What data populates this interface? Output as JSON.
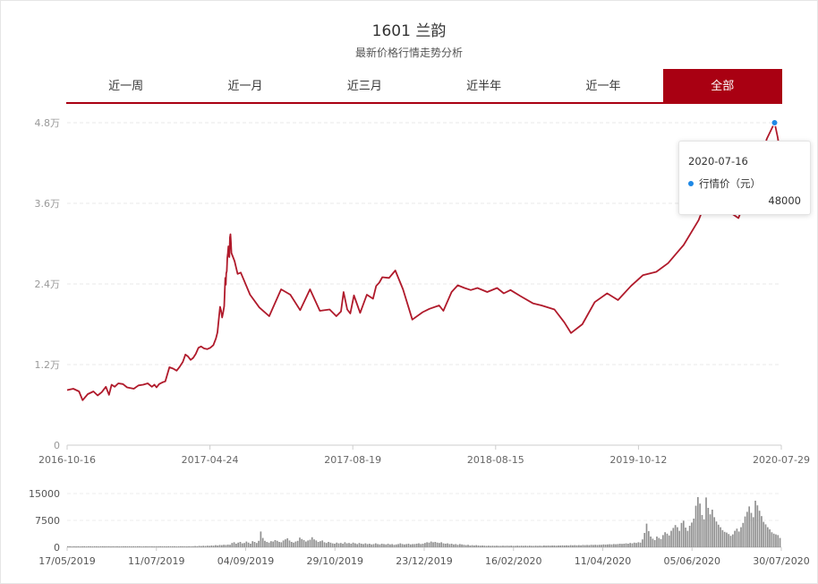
{
  "header": {
    "title": "1601 兰韵",
    "subtitle": "最新价格行情走势分析"
  },
  "tabs": [
    {
      "label": "近一周",
      "active": false
    },
    {
      "label": "近一月",
      "active": false
    },
    {
      "label": "近三月",
      "active": false
    },
    {
      "label": "近半年",
      "active": false
    },
    {
      "label": "近一年",
      "active": false
    },
    {
      "label": "全部",
      "active": true
    }
  ],
  "colors": {
    "line": "#b01a2b",
    "accent": "#a90012",
    "marker": "#1e88e5",
    "volume": "#909090"
  },
  "tooltip": {
    "date": "2020-07-16",
    "series_name": "行情价（元）",
    "value": "48000"
  },
  "chart_data": [
    {
      "type": "line",
      "series": [
        {
          "name": "行情价（元）"
        }
      ],
      "ylim": [
        0,
        48000
      ],
      "y_ticks": [
        "0",
        "1.2万",
        "2.4万",
        "3.6万",
        "4.8万"
      ],
      "x_ticks": [
        "2016-10-16",
        "2017-04-24",
        "2017-08-19",
        "2018-08-15",
        "2019-10-12",
        "2020-07-29"
      ],
      "grid": true,
      "points": [
        [
          "2016-10-16",
          8200
        ],
        [
          "2016-10-28",
          8400
        ],
        [
          "2016-11-08",
          8000
        ],
        [
          "2016-11-15",
          6700
        ],
        [
          "2016-11-25",
          7600
        ],
        [
          "2016-12-06",
          8000
        ],
        [
          "2016-12-14",
          7400
        ],
        [
          "2016-12-22",
          7900
        ],
        [
          "2016-12-30",
          8700
        ],
        [
          "2017-01-05",
          7500
        ],
        [
          "2017-01-10",
          9000
        ],
        [
          "2017-01-16",
          8700
        ],
        [
          "2017-01-23",
          9200
        ],
        [
          "2017-02-01",
          9100
        ],
        [
          "2017-02-09",
          8600
        ],
        [
          "2017-02-22",
          8400
        ],
        [
          "2017-03-03",
          8900
        ],
        [
          "2017-03-12",
          9000
        ],
        [
          "2017-03-21",
          9200
        ],
        [
          "2017-03-29",
          8700
        ],
        [
          "2017-04-03",
          9000
        ],
        [
          "2017-04-07",
          8600
        ],
        [
          "2017-04-12",
          9100
        ],
        [
          "2017-04-17",
          9300
        ],
        [
          "2017-04-20",
          9400
        ],
        [
          "2017-04-24",
          9500
        ],
        [
          "2017-05-02",
          11600
        ],
        [
          "2017-05-09",
          11400
        ],
        [
          "2017-05-16",
          11100
        ],
        [
          "2017-05-22",
          11700
        ],
        [
          "2017-05-28",
          12400
        ],
        [
          "2017-06-02",
          13500
        ],
        [
          "2017-06-07",
          13200
        ],
        [
          "2017-06-12",
          12700
        ],
        [
          "2017-06-17",
          13000
        ],
        [
          "2017-06-22",
          13600
        ],
        [
          "2017-06-27",
          14500
        ],
        [
          "2017-07-02",
          14700
        ],
        [
          "2017-07-08",
          14400
        ],
        [
          "2017-07-14",
          14300
        ],
        [
          "2017-07-20",
          14500
        ],
        [
          "2017-07-26",
          14900
        ],
        [
          "2017-07-31",
          15900
        ],
        [
          "2017-08-03",
          16800
        ],
        [
          "2017-08-06",
          19200
        ],
        [
          "2017-08-08",
          20600
        ],
        [
          "2017-08-10",
          20000
        ],
        [
          "2017-08-12",
          19000
        ],
        [
          "2017-08-14",
          19800
        ],
        [
          "2017-08-16",
          20700
        ],
        [
          "2017-08-18",
          24900
        ],
        [
          "2017-08-19",
          23900
        ],
        [
          "2017-08-20",
          25600
        ],
        [
          "2017-08-21",
          25900
        ],
        [
          "2017-08-22",
          27900
        ],
        [
          "2017-08-23",
          28600
        ],
        [
          "2017-08-24",
          29600
        ],
        [
          "2017-08-25",
          28200
        ],
        [
          "2017-08-26",
          28000
        ],
        [
          "2017-08-27",
          30900
        ],
        [
          "2017-08-28",
          31400
        ],
        [
          "2017-08-29",
          30300
        ],
        [
          "2017-08-30",
          28600
        ],
        [
          "2017-08-31",
          28400
        ],
        [
          "2017-09-05",
          27400
        ],
        [
          "2017-09-11",
          25500
        ],
        [
          "2017-09-17",
          25700
        ],
        [
          "2017-10-05",
          22400
        ],
        [
          "2017-10-23",
          20500
        ],
        [
          "2017-11-11",
          19200
        ],
        [
          "2017-12-04",
          23200
        ],
        [
          "2017-12-22",
          22400
        ],
        [
          "2018-01-10",
          20100
        ],
        [
          "2018-01-29",
          23200
        ],
        [
          "2018-02-17",
          20000
        ],
        [
          "2018-03-08",
          20200
        ],
        [
          "2018-03-21",
          19200
        ],
        [
          "2018-03-30",
          19900
        ],
        [
          "2018-04-04",
          22800
        ],
        [
          "2018-04-11",
          20200
        ],
        [
          "2018-04-17",
          19600
        ],
        [
          "2018-04-24",
          22300
        ],
        [
          "2018-05-06",
          19700
        ],
        [
          "2018-05-19",
          22400
        ],
        [
          "2018-05-31",
          21800
        ],
        [
          "2018-06-06",
          23700
        ],
        [
          "2018-06-12",
          24200
        ],
        [
          "2018-06-18",
          25000
        ],
        [
          "2018-07-01",
          24900
        ],
        [
          "2018-07-13",
          26000
        ],
        [
          "2018-07-28",
          23200
        ],
        [
          "2018-08-15",
          18700
        ],
        [
          "2018-09-04",
          19800
        ],
        [
          "2018-09-17",
          20300
        ],
        [
          "2018-10-06",
          20800
        ],
        [
          "2018-10-14",
          20000
        ],
        [
          "2018-10-30",
          22800
        ],
        [
          "2018-11-11",
          23800
        ],
        [
          "2018-11-24",
          23400
        ],
        [
          "2018-12-06",
          23100
        ],
        [
          "2018-12-19",
          23400
        ],
        [
          "2019-01-07",
          22800
        ],
        [
          "2019-01-26",
          23400
        ],
        [
          "2019-02-08",
          22600
        ],
        [
          "2019-02-21",
          23100
        ],
        [
          "2019-03-12",
          22200
        ],
        [
          "2019-04-06",
          21100
        ],
        [
          "2019-04-22",
          20800
        ],
        [
          "2019-05-17",
          20200
        ],
        [
          "2019-06-05",
          18300
        ],
        [
          "2019-06-18",
          16700
        ],
        [
          "2019-07-10",
          18000
        ],
        [
          "2019-08-03",
          21300
        ],
        [
          "2019-08-27",
          22600
        ],
        [
          "2019-09-17",
          21600
        ],
        [
          "2019-10-12",
          23700
        ],
        [
          "2019-11-04",
          25300
        ],
        [
          "2019-11-30",
          25800
        ],
        [
          "2019-12-23",
          27100
        ],
        [
          "2020-01-22",
          29800
        ],
        [
          "2020-02-20",
          33500
        ],
        [
          "2020-03-08",
          36800
        ],
        [
          "2020-03-22",
          41200
        ],
        [
          "2020-04-04",
          37400
        ],
        [
          "2020-04-18",
          34800
        ],
        [
          "2020-05-07",
          33800
        ],
        [
          "2020-05-20",
          36400
        ],
        [
          "2020-06-05",
          40800
        ],
        [
          "2020-06-21",
          43000
        ],
        [
          "2020-07-01",
          45600
        ],
        [
          "2020-07-16",
          48000
        ],
        [
          "2020-07-22",
          45800
        ],
        [
          "2020-07-29",
          42400
        ]
      ]
    },
    {
      "type": "bar",
      "ylim": [
        0,
        15000
      ],
      "y_ticks": [
        "0",
        "7500",
        "15000"
      ],
      "x_ticks": [
        "17/05/2019",
        "11/07/2019",
        "04/09/2019",
        "29/10/2019",
        "23/12/2019",
        "16/02/2020",
        "11/04/2020",
        "05/06/2020",
        "30/07/2020"
      ],
      "x_range": [
        "17/05/2019",
        "30/07/2020"
      ],
      "values": [
        300,
        300,
        250,
        300,
        250,
        300,
        250,
        280,
        300,
        250,
        300,
        280,
        250,
        300,
        280,
        250,
        300,
        300,
        280,
        300,
        300,
        250,
        300,
        280,
        300,
        250,
        280,
        300,
        300,
        280,
        300,
        250,
        300,
        280,
        300,
        300,
        250,
        280,
        300,
        280,
        300,
        280,
        250,
        300,
        280,
        300,
        280,
        300,
        250,
        300,
        300,
        280,
        300,
        250,
        280,
        300,
        300,
        300,
        250,
        300,
        280,
        300,
        350,
        300,
        400,
        350,
        420,
        380,
        450,
        400,
        500,
        450,
        600,
        500,
        650,
        600,
        700,
        650,
        750,
        700,
        1200,
        1400,
        1000,
        1300,
        1500,
        1100,
        1200,
        1600,
        1300,
        1000,
        1700,
        1500,
        1200,
        1800,
        4400,
        2600,
        1800,
        1500,
        1300,
        1700,
        1600,
        2000,
        1800,
        1500,
        1400,
        1900,
        2200,
        2500,
        1900,
        1500,
        1300,
        1600,
        1800,
        2700,
        2300,
        2000,
        1600,
        1900,
        2100,
        2800,
        2200,
        1900,
        1500,
        1700,
        1900,
        1400,
        1200,
        1500,
        1300,
        1100,
        1000,
        1300,
        1100,
        1200,
        1000,
        1400,
        1100,
        1200,
        1000,
        1300,
        1100,
        900,
        1200,
        1000,
        900,
        1100,
        900,
        1000,
        800,
        900,
        1100,
        900,
        800,
        1000,
        900,
        800,
        1000,
        800,
        900,
        700,
        800,
        900,
        1100,
        900,
        800,
        900,
        1000,
        800,
        900,
        900,
        1000,
        1100,
        900,
        1000,
        1200,
        1400,
        1300,
        1600,
        1400,
        1500,
        1300,
        1200,
        1400,
        1100,
        1000,
        1100,
        900,
        1000,
        800,
        900,
        700,
        900,
        800,
        700,
        600,
        700,
        500,
        600,
        500,
        600,
        500,
        450,
        500,
        450,
        400,
        450,
        400,
        450,
        400,
        450,
        400,
        400,
        450,
        400,
        450,
        400,
        450,
        400,
        400,
        450,
        400,
        450,
        400,
        450,
        400,
        450,
        400,
        400,
        450,
        400,
        450,
        400,
        500,
        450,
        500,
        450,
        500,
        500,
        450,
        500,
        500,
        550,
        500,
        550,
        500,
        600,
        550,
        600,
        550,
        600,
        550,
        650,
        600,
        650,
        600,
        700,
        650,
        700,
        650,
        700,
        700,
        800,
        750,
        800,
        850,
        800,
        900,
        850,
        900,
        1000,
        950,
        1000,
        1100,
        1000,
        1200,
        1100,
        1300,
        1200,
        1400,
        1300,
        2200,
        4000,
        6600,
        4500,
        3000,
        2400,
        2000,
        3000,
        2600,
        2300,
        3400,
        4200,
        3800,
        3300,
        4600,
        5400,
        6200,
        5600,
        4600,
        6800,
        7400,
        5500,
        4600,
        6000,
        6900,
        8000,
        11600,
        14000,
        12200,
        9000,
        7800,
        13900,
        11000,
        9200,
        10500,
        8400,
        7200,
        6300,
        5600,
        4800,
        4300,
        4100,
        3700,
        3200,
        3600,
        4600,
        5200,
        4400,
        5600,
        6800,
        8600,
        9900,
        11400,
        9600,
        8400,
        13000,
        11700,
        10200,
        8700,
        7100,
        6400,
        5600,
        5000,
        4200,
        3800,
        3600,
        3400,
        2600
      ]
    }
  ]
}
